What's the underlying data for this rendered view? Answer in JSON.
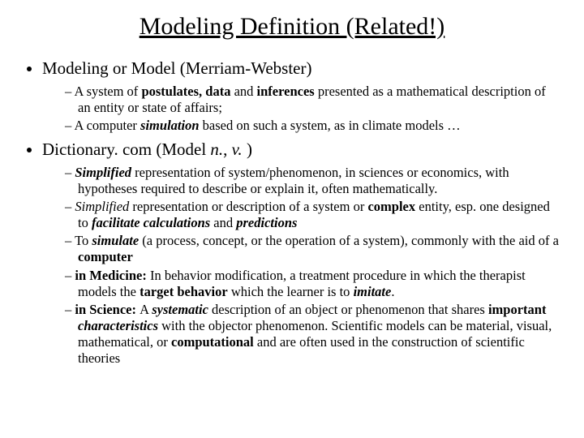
{
  "title": "Modeling Definition (Related!)",
  "level1": {
    "mw_label": "Modeling or Model (Merriam-Webster)",
    "dict_prefix": "Dictionary. com (Model ",
    "dict_n": "n.",
    "dict_sep": ", ",
    "dict_v": "v.",
    "dict_suffix": " )"
  },
  "mw": {
    "a1": "A system of ",
    "a2": "postulates, data ",
    "a3": "and ",
    "a4": "inferences ",
    "a5": "presented as a mathematical description of an entity or state of affairs;",
    "b1": "A computer ",
    "b2": "simulation",
    "b3": " based on such a system, as in climate models …"
  },
  "dc": {
    "a1": "Simplified",
    "a2": " representation of system/phenomenon, in sciences or economics, with hypotheses required to describe or explain it, often mathematically.",
    "b1": "Simplified",
    "b2": " representation or description of a system or ",
    "b3": "complex ",
    "b4": "entity, esp. one designed to ",
    "b5": "facilitate calculations ",
    "b6": "and ",
    "b7": "predictions",
    "c1": "To ",
    "c2": "simulate",
    "c3": " (a process, concept, or the operation of a system), commonly with the aid of a ",
    "c4": "computer",
    "d1": "in Medicine: ",
    "d2": "In behavior modification, a treatment procedure in which the therapist models the ",
    "d3": "target behavior",
    "d4": " which the learner is to ",
    "d5": "imitate",
    "d6": ".",
    "e1": "in Science: ",
    "e2": "A ",
    "e3": "systematic",
    "e4": " description of an object or phenomenon that shares ",
    "e5": "important",
    "e6": " ",
    "e7": "characteristics",
    "e8": " with the objector phenomenon. Scientific models can be material, visual, mathematical, or ",
    "e9": "computational ",
    "e10": "and are often used in the construction of scientific theories"
  }
}
